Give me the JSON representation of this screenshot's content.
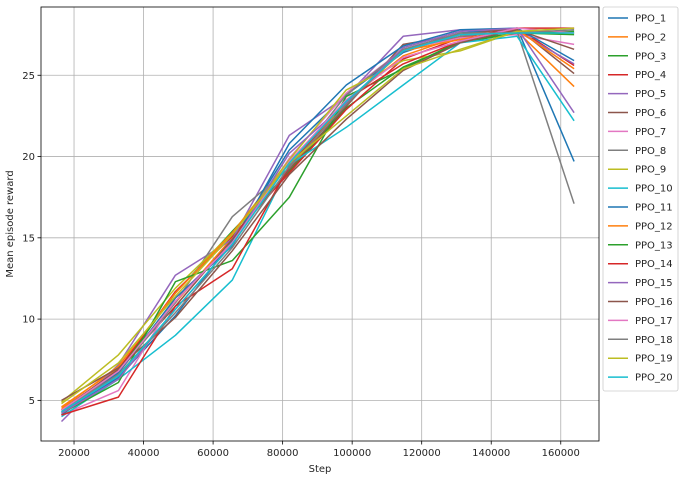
{
  "chart_data": {
    "type": "line",
    "title": "",
    "xlabel": "Step",
    "ylabel": "Mean episode reward",
    "xlim": [
      10500,
      171000
    ],
    "ylim": [
      2.5,
      29.2
    ],
    "x_ticks": [
      20000,
      40000,
      60000,
      80000,
      100000,
      120000,
      140000,
      160000
    ],
    "y_ticks": [
      5,
      10,
      15,
      20,
      25
    ],
    "grid": true,
    "legend_position": "outside-right",
    "x": [
      16384,
      32768,
      49152,
      65536,
      81920,
      98304,
      114688,
      131072,
      147456,
      163840
    ],
    "series": [
      {
        "name": "PPO_1",
        "color": "#1f77b4",
        "values": [
          4.2,
          6.4,
          10.2,
          14.8,
          20.4,
          23.8,
          26.4,
          27.6,
          27.9,
          19.7
        ]
      },
      {
        "name": "PPO_2",
        "color": "#ff7f0e",
        "values": [
          4.6,
          7.0,
          11.0,
          15.0,
          19.2,
          23.4,
          26.2,
          27.4,
          27.7,
          24.3
        ]
      },
      {
        "name": "PPO_3",
        "color": "#2ca02c",
        "values": [
          4.3,
          6.8,
          11.6,
          15.4,
          19.1,
          23.0,
          25.5,
          27.0,
          27.6,
          27.5
        ]
      },
      {
        "name": "PPO_4",
        "color": "#d62728",
        "values": [
          4.4,
          6.9,
          11.7,
          15.1,
          19.0,
          22.9,
          26.0,
          27.3,
          27.9,
          25.6
        ]
      },
      {
        "name": "PPO_5",
        "color": "#9467bd",
        "values": [
          3.7,
          7.2,
          12.7,
          14.9,
          21.3,
          23.7,
          27.4,
          27.8,
          27.7,
          25.7
        ]
      },
      {
        "name": "PPO_6",
        "color": "#8c564b",
        "values": [
          4.4,
          6.9,
          10.8,
          14.9,
          19.2,
          23.1,
          26.9,
          27.5,
          27.9,
          25.1
        ]
      },
      {
        "name": "PPO_7",
        "color": "#e377c2",
        "values": [
          4.1,
          5.6,
          11.3,
          14.6,
          19.9,
          23.9,
          26.6,
          27.3,
          27.5,
          26.9
        ]
      },
      {
        "name": "PPO_8",
        "color": "#7f7f7f",
        "values": [
          4.3,
          6.7,
          11.0,
          16.3,
          19.3,
          23.8,
          26.6,
          27.4,
          27.7,
          17.1
        ]
      },
      {
        "name": "PPO_9",
        "color": "#bcbd22",
        "values": [
          4.9,
          7.8,
          11.9,
          15.3,
          19.8,
          24.1,
          25.9,
          26.5,
          27.7,
          27.6
        ]
      },
      {
        "name": "PPO_10",
        "color": "#17becf",
        "values": [
          4.0,
          6.3,
          9.0,
          12.4,
          19.5,
          21.8,
          24.4,
          27.0,
          27.4,
          22.2
        ]
      },
      {
        "name": "PPO_11",
        "color": "#1f77b4",
        "values": [
          4.1,
          6.7,
          11.3,
          14.5,
          20.8,
          24.4,
          26.8,
          27.8,
          27.9,
          25.9
        ]
      },
      {
        "name": "PPO_12",
        "color": "#ff7f0e",
        "values": [
          4.5,
          7.1,
          11.6,
          15.3,
          19.6,
          23.3,
          26.5,
          27.2,
          27.8,
          25.4
        ]
      },
      {
        "name": "PPO_13",
        "color": "#2ca02c",
        "values": [
          4.2,
          6.1,
          12.3,
          13.6,
          17.5,
          23.7,
          25.4,
          27.1,
          27.6,
          27.7
        ]
      },
      {
        "name": "PPO_14",
        "color": "#d62728",
        "values": [
          4.1,
          5.2,
          10.8,
          13.1,
          19.4,
          23.5,
          25.7,
          27.1,
          27.9,
          27.9
        ]
      },
      {
        "name": "PPO_15",
        "color": "#9467bd",
        "values": [
          4.2,
          6.3,
          10.6,
          14.6,
          20.2,
          23.3,
          26.7,
          27.7,
          27.9,
          22.7
        ]
      },
      {
        "name": "PPO_16",
        "color": "#8c564b",
        "values": [
          5.0,
          7.0,
          10.1,
          14.2,
          18.9,
          22.3,
          25.3,
          27.0,
          27.8,
          26.6
        ]
      },
      {
        "name": "PPO_17",
        "color": "#e377c2",
        "values": [
          4.4,
          6.8,
          11.1,
          14.7,
          19.7,
          23.5,
          26.1,
          27.1,
          27.9,
          27.6
        ]
      },
      {
        "name": "PPO_18",
        "color": "#7f7f7f",
        "values": [
          4.3,
          6.6,
          10.4,
          14.4,
          19.4,
          23.2,
          26.6,
          27.6,
          27.6,
          27.8
        ]
      },
      {
        "name": "PPO_19",
        "color": "#bcbd22",
        "values": [
          4.8,
          7.3,
          11.4,
          15.2,
          19.6,
          22.5,
          25.4,
          26.6,
          27.7,
          27.9
        ]
      },
      {
        "name": "PPO_20",
        "color": "#17becf",
        "values": [
          4.3,
          6.5,
          10.6,
          14.6,
          19.6,
          23.4,
          26.5,
          27.5,
          27.6,
          27.6
        ]
      }
    ]
  }
}
